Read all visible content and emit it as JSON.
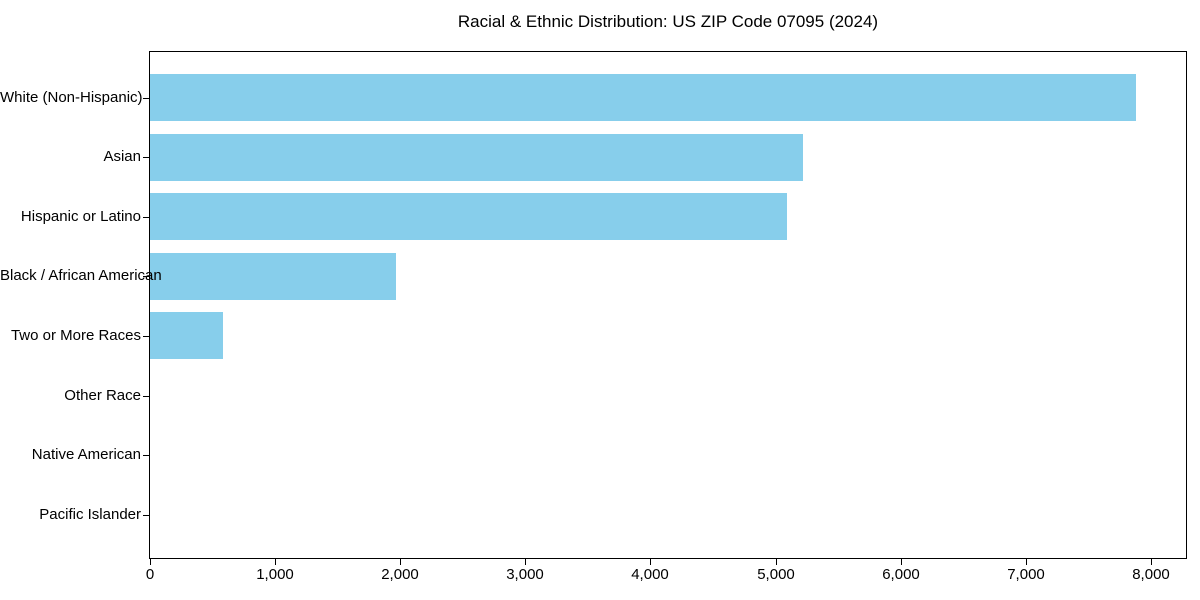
{
  "title": "Racial & Ethnic Distribution: US ZIP Code 07095 (2024)",
  "colors": {
    "bar": "#87CEEB",
    "axis": "#000000",
    "text": "#000000",
    "background": "#ffffff"
  },
  "chart_data": {
    "type": "bar",
    "orientation": "horizontal",
    "title": "Racial & Ethnic Distribution: US ZIP Code 07095 (2024)",
    "xlabel": "",
    "ylabel": "",
    "grid": false,
    "legend": "none",
    "bar_color": "#87CEEB",
    "categories": [
      "White (Non-Hispanic)",
      "Asian",
      "Hispanic or Latino",
      "Black / African American",
      "Two or More Races",
      "Other Race",
      "Native American",
      "Pacific Islander"
    ],
    "values": [
      7880,
      5220,
      5095,
      1965,
      585,
      0,
      0,
      0
    ],
    "xlim": [
      0,
      8280
    ],
    "xticks": [
      0,
      1000,
      2000,
      3000,
      4000,
      5000,
      6000,
      7000,
      8000
    ],
    "xtick_labels": [
      "0",
      "1,000",
      "2,000",
      "3,000",
      "4,000",
      "5,000",
      "6,000",
      "7,000",
      "8,000"
    ]
  }
}
